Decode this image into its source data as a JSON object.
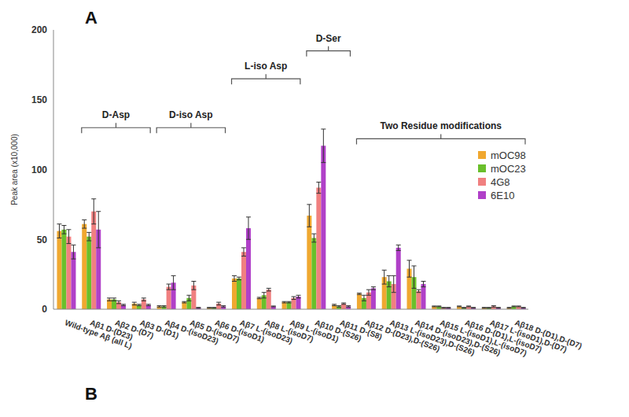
{
  "chart_data": {
    "type": "bar",
    "y_label": "Peak area (x10,000)",
    "categories": [
      "Wild-type Aβ (all L)",
      "Aβ1 D-(D23)",
      "Aβ2 D-(D7)",
      "Aβ3 D-(D1)",
      "Aβ4 D-(isoD23)",
      "Aβ5 D-(isoD7)",
      "Aβ6 D-(isoD1)",
      "Aβ7 L-(isoD23)",
      "Aβ8 L-(isoD7)",
      "Aβ9 L-(isoD1)",
      "Aβ10 D-(S26)",
      "Aβ11 D-(S8)",
      "Aβ12 D-(D23),D-(S26)",
      "Aβ13 L-(isoD23),D-(S26)",
      "Aβ14 D-(isoD23),D-(S26)",
      "Aβ15 L-(isoD1),L-(isoD7)",
      "Aβ16 D-(D1),L-(isoD7)",
      "Aβ17 L-(isoD1),D-(D7)",
      "Aβ18 D-(D1),D-(D7)"
    ],
    "series": [
      {
        "name": "mOC98",
        "color": "#f0a830",
        "values": [
          56,
          61,
          7,
          4,
          2,
          5,
          1,
          22,
          8,
          5,
          67,
          3,
          11,
          23,
          29,
          2,
          2,
          1,
          1
        ],
        "errors": [
          5,
          3,
          1,
          1,
          0.5,
          0.5,
          0.3,
          2,
          0.5,
          0.5,
          8,
          0.5,
          0.5,
          5,
          6,
          0.3,
          0.3,
          0.3,
          0.3
        ]
      },
      {
        "name": "mOC23",
        "color": "#6abf2b",
        "values": [
          57,
          52,
          7,
          3,
          2,
          8,
          1,
          22,
          10,
          5,
          51,
          2,
          8,
          20,
          23,
          2,
          1,
          1,
          2
        ],
        "errors": [
          3,
          3,
          1,
          0.5,
          0.5,
          2,
          0.3,
          1,
          2,
          0.5,
          3,
          0.5,
          2,
          4,
          8,
          0.3,
          0.3,
          0.3,
          0.3
        ]
      },
      {
        "name": "4G8",
        "color": "#f08080",
        "values": [
          52,
          70,
          5,
          7,
          16,
          17,
          4,
          41,
          14,
          8,
          87,
          4,
          12,
          18,
          13,
          1,
          2,
          2,
          2
        ],
        "errors": [
          5,
          9,
          1,
          1,
          2,
          3,
          1,
          3,
          1,
          1,
          4,
          0.5,
          2,
          6,
          1,
          0.3,
          0.3,
          0.5,
          0.3
        ]
      },
      {
        "name": "6E10",
        "color": "#b040c8",
        "values": [
          41,
          57,
          3,
          3,
          19,
          1,
          2,
          58,
          2,
          9,
          117,
          2,
          15,
          44,
          18,
          1,
          1,
          1,
          1
        ],
        "errors": [
          5,
          13,
          0.5,
          0.5,
          5,
          0.3,
          0.5,
          8,
          0.3,
          1,
          12,
          0.5,
          1,
          2,
          2,
          0.3,
          0.3,
          0.3,
          0.3
        ]
      }
    ],
    "ylim": [
      0,
      200
    ],
    "yticks": [
      0,
      50,
      100,
      150,
      200
    ],
    "grid": false,
    "legend": "right",
    "groups": [
      {
        "label": "D-Asp",
        "first": "Aβ1 D-(D23)",
        "last": "Aβ3 D-(D1)"
      },
      {
        "label": "D-iso Asp",
        "first": "Aβ4 D-(isoD23)",
        "last": "Aβ6 D-(isoD1)"
      },
      {
        "label": "L-iso Asp",
        "first": "Aβ7 L-(isoD23)",
        "last": "Aβ9 L-(isoD1)"
      },
      {
        "label": "D-Ser",
        "first": "Aβ10 D-(S26)",
        "last": "Aβ11 D-(S8)"
      },
      {
        "label": "Two Residue modifications",
        "first": "Aβ12 D-(D23),D-(S26)",
        "last": "Aβ18 D-(D1),D-(D7)"
      }
    ],
    "annotations": [
      {
        "text": "A"
      },
      {
        "text": "B"
      }
    ]
  }
}
